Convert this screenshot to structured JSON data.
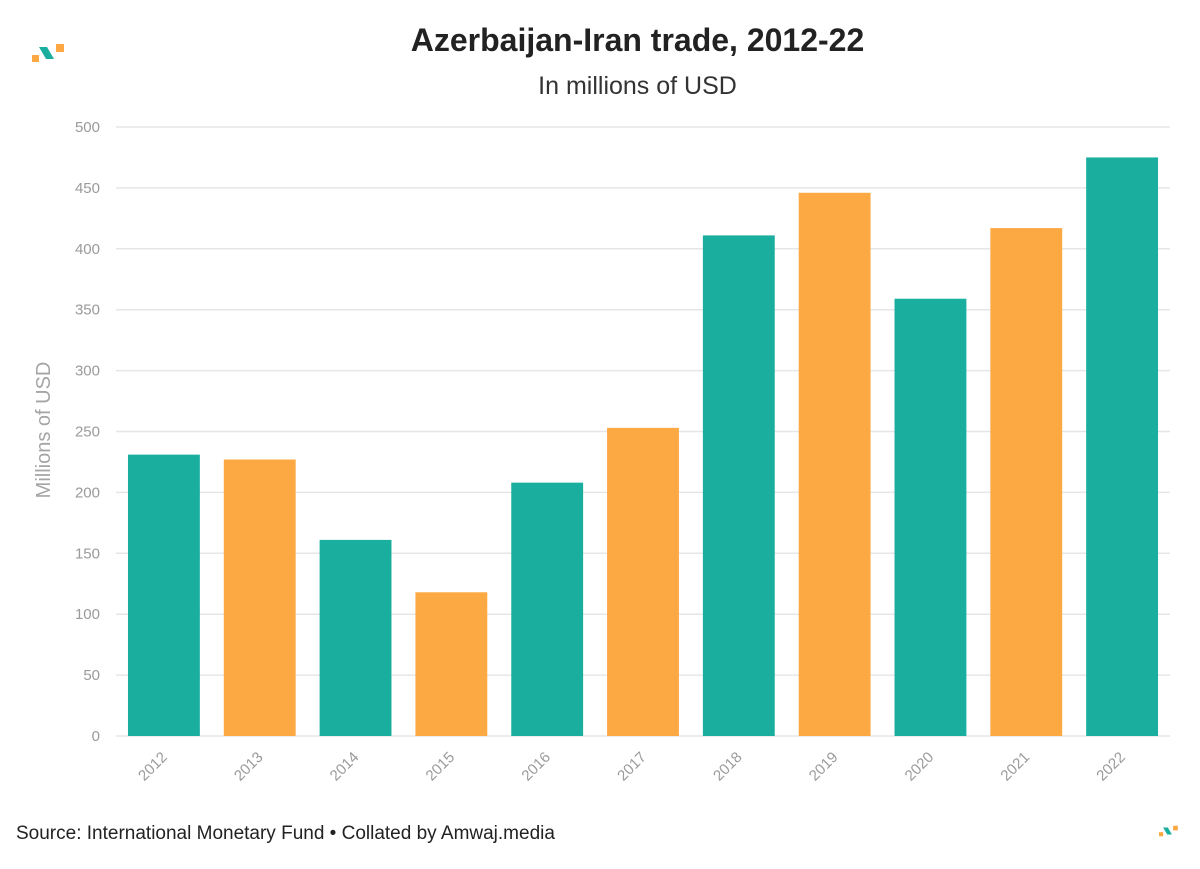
{
  "chart_data": {
    "type": "bar",
    "title": "Azerbaijan-Iran trade, 2012-22",
    "subtitle": "In millions of USD",
    "xlabel": "",
    "ylabel": "Millions of USD",
    "categories": [
      "2012",
      "2013",
      "2014",
      "2015",
      "2016",
      "2017",
      "2018",
      "2019",
      "2020",
      "2021",
      "2022"
    ],
    "values": [
      231,
      227,
      161,
      118,
      208,
      253,
      411,
      446,
      359,
      417,
      475
    ],
    "bar_colors": [
      "#1aae9f",
      "#fda943",
      "#1aae9f",
      "#fda943",
      "#1aae9f",
      "#fda943",
      "#1aae9f",
      "#fda943",
      "#1aae9f",
      "#fda943",
      "#1aae9f"
    ],
    "ylim": [
      0,
      500
    ],
    "yticks": [
      0,
      50,
      100,
      150,
      200,
      250,
      300,
      350,
      400,
      450,
      500
    ],
    "grid": true,
    "legend": "none"
  },
  "footer": {
    "source": "Source: International Monetary Fund • Collated by Amwaj.media"
  },
  "colors": {
    "teal": "#1aae9f",
    "orange": "#fda943",
    "grid": "#e6e6e6"
  },
  "icons": {
    "brand": "amwaj-logo-icon"
  }
}
